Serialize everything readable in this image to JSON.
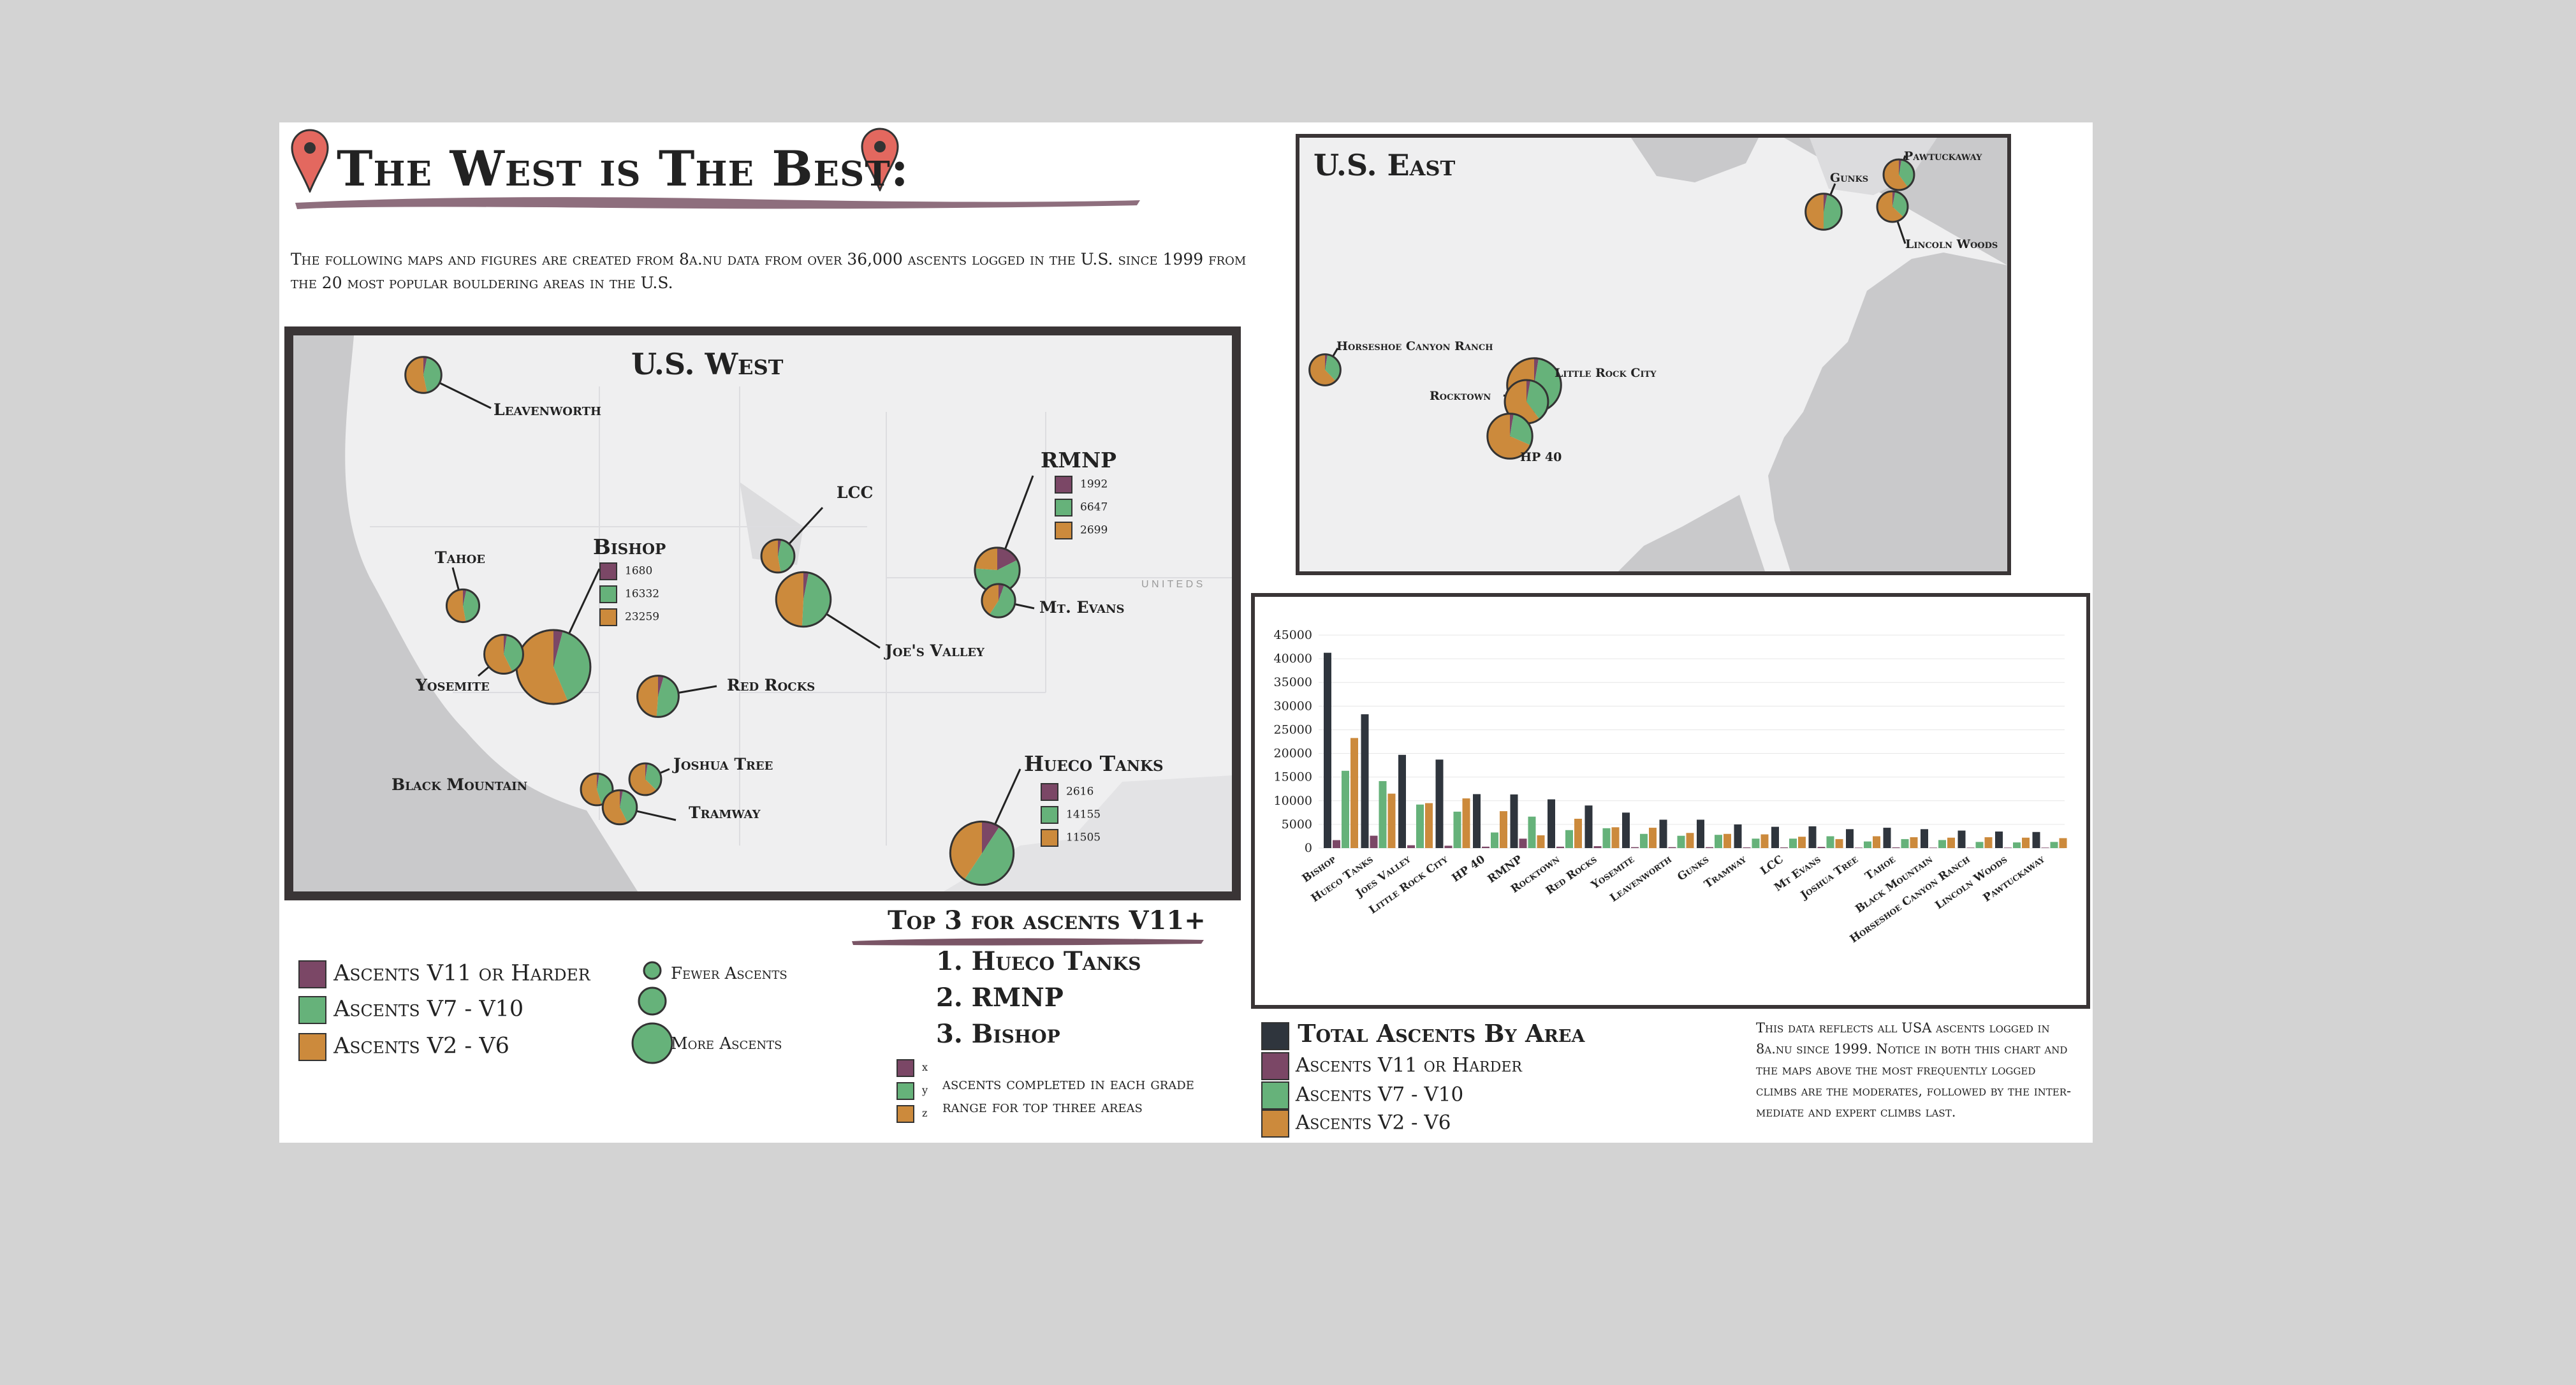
{
  "header": {
    "title": "The West is The Best:",
    "intro": "The following maps and figures are created from 8a.nu data from over 36,000 ascents logged in the U.S. since 1999 from the 20 most popular bouldering areas in the U.S."
  },
  "colors": {
    "v11": "#7b4766",
    "v7": "#66b27a",
    "v2": "#cc8a3c",
    "total": "#2f353d",
    "frame": "#3a3536",
    "land": "#efeff0",
    "water": "#c9c9cb",
    "pin": "#e3685f",
    "brush": "#7a5566"
  },
  "west_map": {
    "title": "U.S. West",
    "country_label": "U N I T E D  S",
    "labels": {
      "leavenworth": "Leavenworth",
      "tahoe": "Tahoe",
      "bishop": "Bishop",
      "yosemite": "Yosemite",
      "lcc": "LCC",
      "joes": "Joe's Valley",
      "rmnp": "RMNP",
      "mt_evans": "Mt. Evans",
      "red_rocks": "Red Rocks",
      "joshua": "Joshua Tree",
      "black_mountain": "Black Mountain",
      "tramway": "Tramway",
      "hueco": "Hueco Tanks"
    },
    "insets": {
      "bishop": [
        "1680",
        "16332",
        "23259"
      ],
      "rmnp": [
        "1992",
        "6647",
        "2699"
      ],
      "hueco": [
        "2616",
        "14155",
        "11505"
      ]
    }
  },
  "east_map": {
    "title": "U.S. East",
    "labels": {
      "pawtuckaway": "Pawtuckaway",
      "gunks": "Gunks",
      "lincoln": "Lincoln Woods",
      "horseshoe": "Horseshoe Canyon Ranch",
      "lrc": "Little Rock City",
      "rocktown": "Rocktown",
      "hp40": "HP 40"
    }
  },
  "map_legend": {
    "v11": "Ascents V11 or Harder",
    "v7": "Ascents V7 - V10",
    "v2": "Ascents V2 - V6",
    "fewer": "Fewer Ascents",
    "more": "More Ascents"
  },
  "top3": {
    "title": "Top 3 for ascents V11+",
    "items": [
      "1. Hueco Tanks",
      "2. RMNP",
      "3. Bishop"
    ],
    "key_letters": [
      "x",
      "y",
      "z"
    ],
    "key_text_1": "ascents completed in each grade",
    "key_text_2": "range for top three areas"
  },
  "chart_legend": {
    "total": "Total Ascents By Area",
    "v11": "Ascents V11 or Harder",
    "v7": "Ascents V7 - V10",
    "v2": "Ascents V2 - V6"
  },
  "note": "This data reflects all USA ascents logged in 8a.nu since 1999. Notice in both this chart and the maps above the most frequently logged climbs are the moderates, followed by the inter-mediate and expert climbs last.",
  "chart_data": {
    "type": "bar",
    "categories": [
      "Bishop",
      "Hueco Tanks",
      "Joes Valley",
      "Little Rock City",
      "HP 40",
      "RMNP",
      "Rocktown",
      "Red Rocks",
      "Yosemite",
      "Leavenworth",
      "Gunks",
      "Tramway",
      "LCC",
      "Mt Evans",
      "Joshua Tree",
      "Tahoe",
      "Black Mountain",
      "Horseshoe Canyon Ranch",
      "Lincoln Woods",
      "Pawtuckaway"
    ],
    "series": [
      {
        "name": "Total Ascents By Area",
        "values": [
          41271,
          28276,
          19700,
          18700,
          11400,
          11338,
          10300,
          9000,
          7500,
          6000,
          6000,
          5000,
          4500,
          4600,
          4000,
          4300,
          4000,
          3700,
          3500,
          3400
        ]
      },
      {
        "name": "Ascents V11 or Harder",
        "values": [
          1680,
          2616,
          600,
          500,
          300,
          1992,
          300,
          400,
          200,
          200,
          200,
          150,
          150,
          250,
          100,
          150,
          100,
          100,
          100,
          100
        ]
      },
      {
        "name": "Ascents V7 - V10",
        "values": [
          16332,
          14155,
          9200,
          7700,
          3300,
          6647,
          3800,
          4200,
          3000,
          2600,
          2800,
          2000,
          2000,
          2500,
          1400,
          1900,
          1700,
          1300,
          1200,
          1300
        ]
      },
      {
        "name": "Ascents V2 - V6",
        "values": [
          23259,
          11505,
          9500,
          10500,
          7800,
          2699,
          6200,
          4400,
          4300,
          3200,
          3000,
          2900,
          2400,
          1900,
          2500,
          2300,
          2200,
          2300,
          2200,
          2100
        ]
      }
    ],
    "ylim": [
      0,
      45000
    ],
    "yticks": [
      "0",
      "5000",
      "10000",
      "15000",
      "20000",
      "25000",
      "30000",
      "35000",
      "40000",
      "45000"
    ],
    "grid": true,
    "legend": "bottom-left"
  }
}
